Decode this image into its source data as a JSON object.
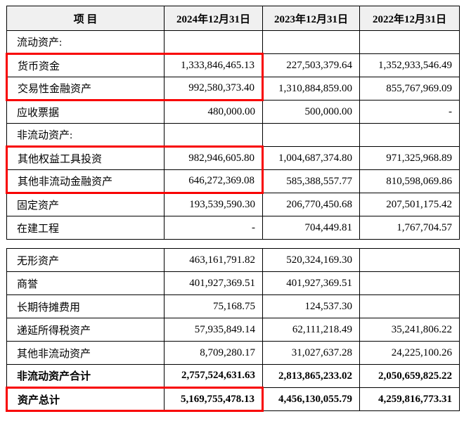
{
  "page": {
    "bg": "#ffffff"
  },
  "table": {
    "colors": {
      "border": "#000000",
      "header_bg": "#f0f0f0",
      "highlight": "#f80000",
      "text": "#000000"
    },
    "columns": {
      "item": "项 目",
      "y2024": "2024年12月31日",
      "y2023": "2023年12月31日",
      "y2022": "2022年12月31日"
    },
    "section1": [
      {
        "label": "流动资产:",
        "values": [
          "",
          "",
          ""
        ],
        "section": true
      },
      {
        "label": "货币资金",
        "values": [
          "1,333,846,465.13",
          "227,503,379.64",
          "1,352,933,546.49"
        ],
        "hl": "top"
      },
      {
        "label": "交易性金融资产",
        "values": [
          "992,580,373.40",
          "1,310,884,859.00",
          "855,767,969.09"
        ],
        "hl": "bot"
      },
      {
        "label": "应收票据",
        "values": [
          "480,000.00",
          "500,000.00",
          "-"
        ]
      },
      {
        "label": "非流动资产:",
        "values": [
          "",
          "",
          ""
        ],
        "section": true
      },
      {
        "label": "其他权益工具投资",
        "values": [
          "982,946,605.80",
          "1,004,687,374.80",
          "971,325,968.89"
        ],
        "hl": "top"
      },
      {
        "label": "其他非流动金融资产",
        "values": [
          "646,272,369.08",
          "585,388,557.77",
          "810,598,069.86"
        ],
        "hl": "bot"
      },
      {
        "label": "固定资产",
        "values": [
          "193,539,590.30",
          "206,770,450.68",
          "207,501,175.42"
        ]
      },
      {
        "label": "在建工程",
        "values": [
          "-",
          "704,449.81",
          "1,767,704.57"
        ]
      }
    ],
    "section2": [
      {
        "label": "无形资产",
        "values": [
          "463,161,791.82",
          "520,324,169.30",
          ""
        ]
      },
      {
        "label": "商誉",
        "values": [
          "401,927,369.51",
          "401,927,369.51",
          ""
        ]
      },
      {
        "label": "长期待摊费用",
        "values": [
          "75,168.75",
          "124,537.30",
          ""
        ]
      },
      {
        "label": "递延所得税资产",
        "values": [
          "57,935,849.14",
          "62,111,218.49",
          "35,241,806.22"
        ]
      },
      {
        "label": "其他非流动资产",
        "values": [
          "8,709,280.17",
          "31,027,637.28",
          "24,225,100.26"
        ]
      },
      {
        "label": "非流动资产合计",
        "values": [
          "2,757,524,631.63",
          "2,813,865,233.02",
          "2,050,659,825.22"
        ],
        "bold": true
      },
      {
        "label": "资产总计",
        "values": [
          "5,169,755,478.13",
          "4,456,130,055.79",
          "4,259,816,773.31"
        ],
        "bold": true,
        "hl": "both"
      }
    ]
  }
}
